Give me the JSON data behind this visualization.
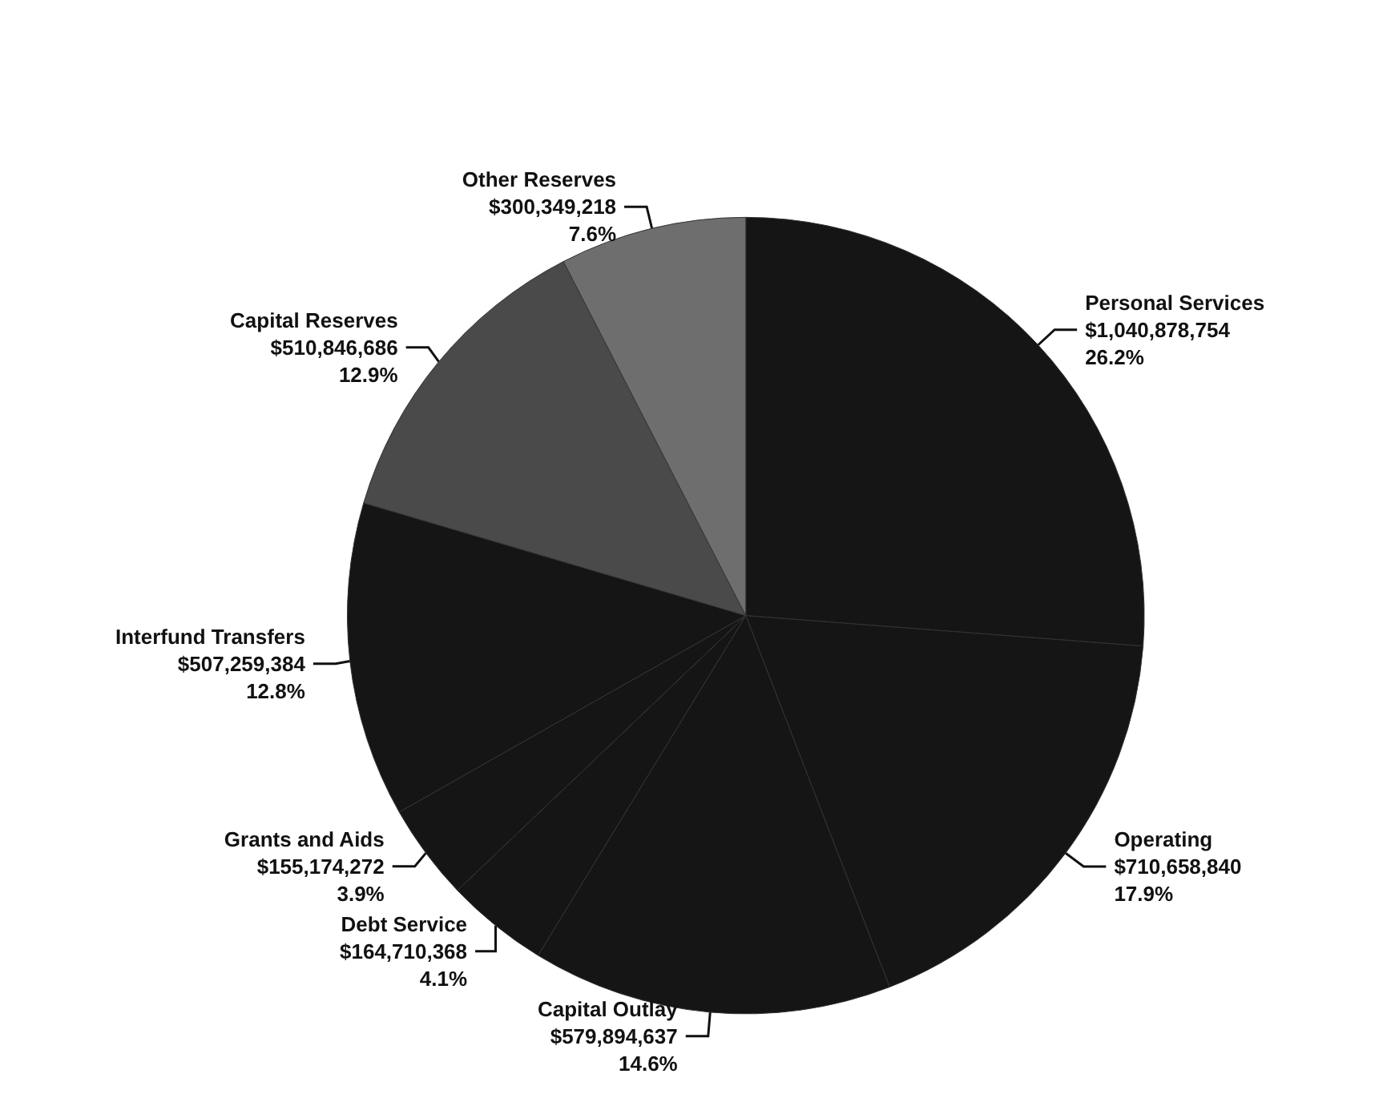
{
  "chart_data": {
    "type": "pie",
    "categories": [
      "Personal Services",
      "Operating",
      "Capital Outlay",
      "Debt Service",
      "Grants and Aids",
      "Interfund Transfers",
      "Capital Reserves",
      "Other Reserves"
    ],
    "values": [
      1040878754,
      710658840,
      579894637,
      164710368,
      155174272,
      507259384,
      510846686,
      300349218
    ],
    "value_labels": [
      "$1,040,878,754\n26.2%",
      "$710,658,840\n17.9%",
      "$579,894,637\n14.6%",
      "$164,710,368\n4.1%",
      "$155,174,272\n3.9%",
      "$507,259,384\n12.8%",
      "$510,846,686\n12.9%",
      "$300,349,218\n7.6%"
    ],
    "colors": [
      "#151515",
      "#151515",
      "#151515",
      "#151515",
      "#151515",
      "#151515",
      "#4a4a4a",
      "#6e6e6e"
    ],
    "legend": false
  }
}
